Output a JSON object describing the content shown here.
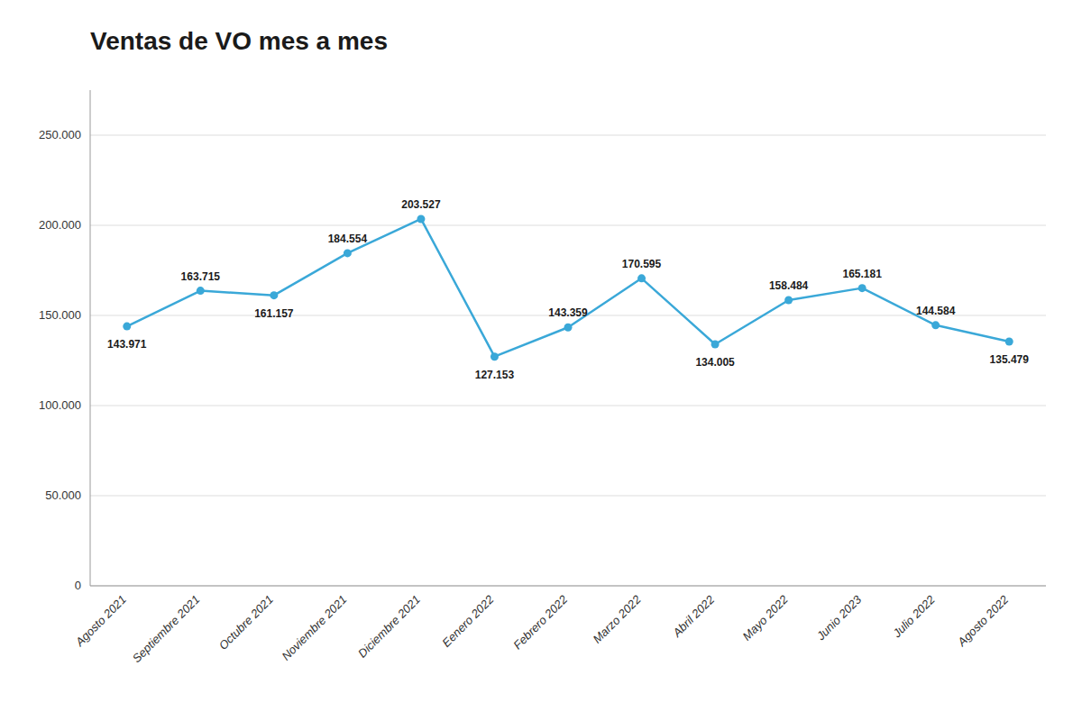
{
  "chart_data": {
    "type": "line",
    "title": "Ventas de VO mes a mes",
    "categories": [
      "Agosto 2021",
      "Septiembre 2021",
      "Octubre 2021",
      "Noviembre 2021",
      "Diciembre 2021",
      "Eenero 2022",
      "Febrero 2022",
      "Marzo 2022",
      "Abril 2022",
      "Mayo 2022",
      "Junio 2023",
      "Julio 2022",
      "Agosto 2022"
    ],
    "values": [
      143971,
      163715,
      161157,
      184554,
      203527,
      127153,
      143359,
      170595,
      134005,
      158484,
      165181,
      144584,
      135479
    ],
    "value_labels": [
      "143.971",
      "163.715",
      "161.157",
      "184.554",
      "203.527",
      "127.153",
      "143.359",
      "170.595",
      "134.005",
      "158.484",
      "165.181",
      "144.584",
      "135.479"
    ],
    "color": "#3aa8d8",
    "marker": "circle",
    "ylim": [
      0,
      275000
    ],
    "yticks": [
      0,
      {
        "value": 50000,
        "label": "50.000"
      },
      {
        "value": 100000,
        "label": "100.000"
      },
      {
        "value": 150000,
        "label": "150.000"
      },
      {
        "value": 200000,
        "label": "200.000"
      },
      {
        "value": 250000,
        "label": "250.000"
      }
    ],
    "grid": true,
    "data_labels": true
  }
}
